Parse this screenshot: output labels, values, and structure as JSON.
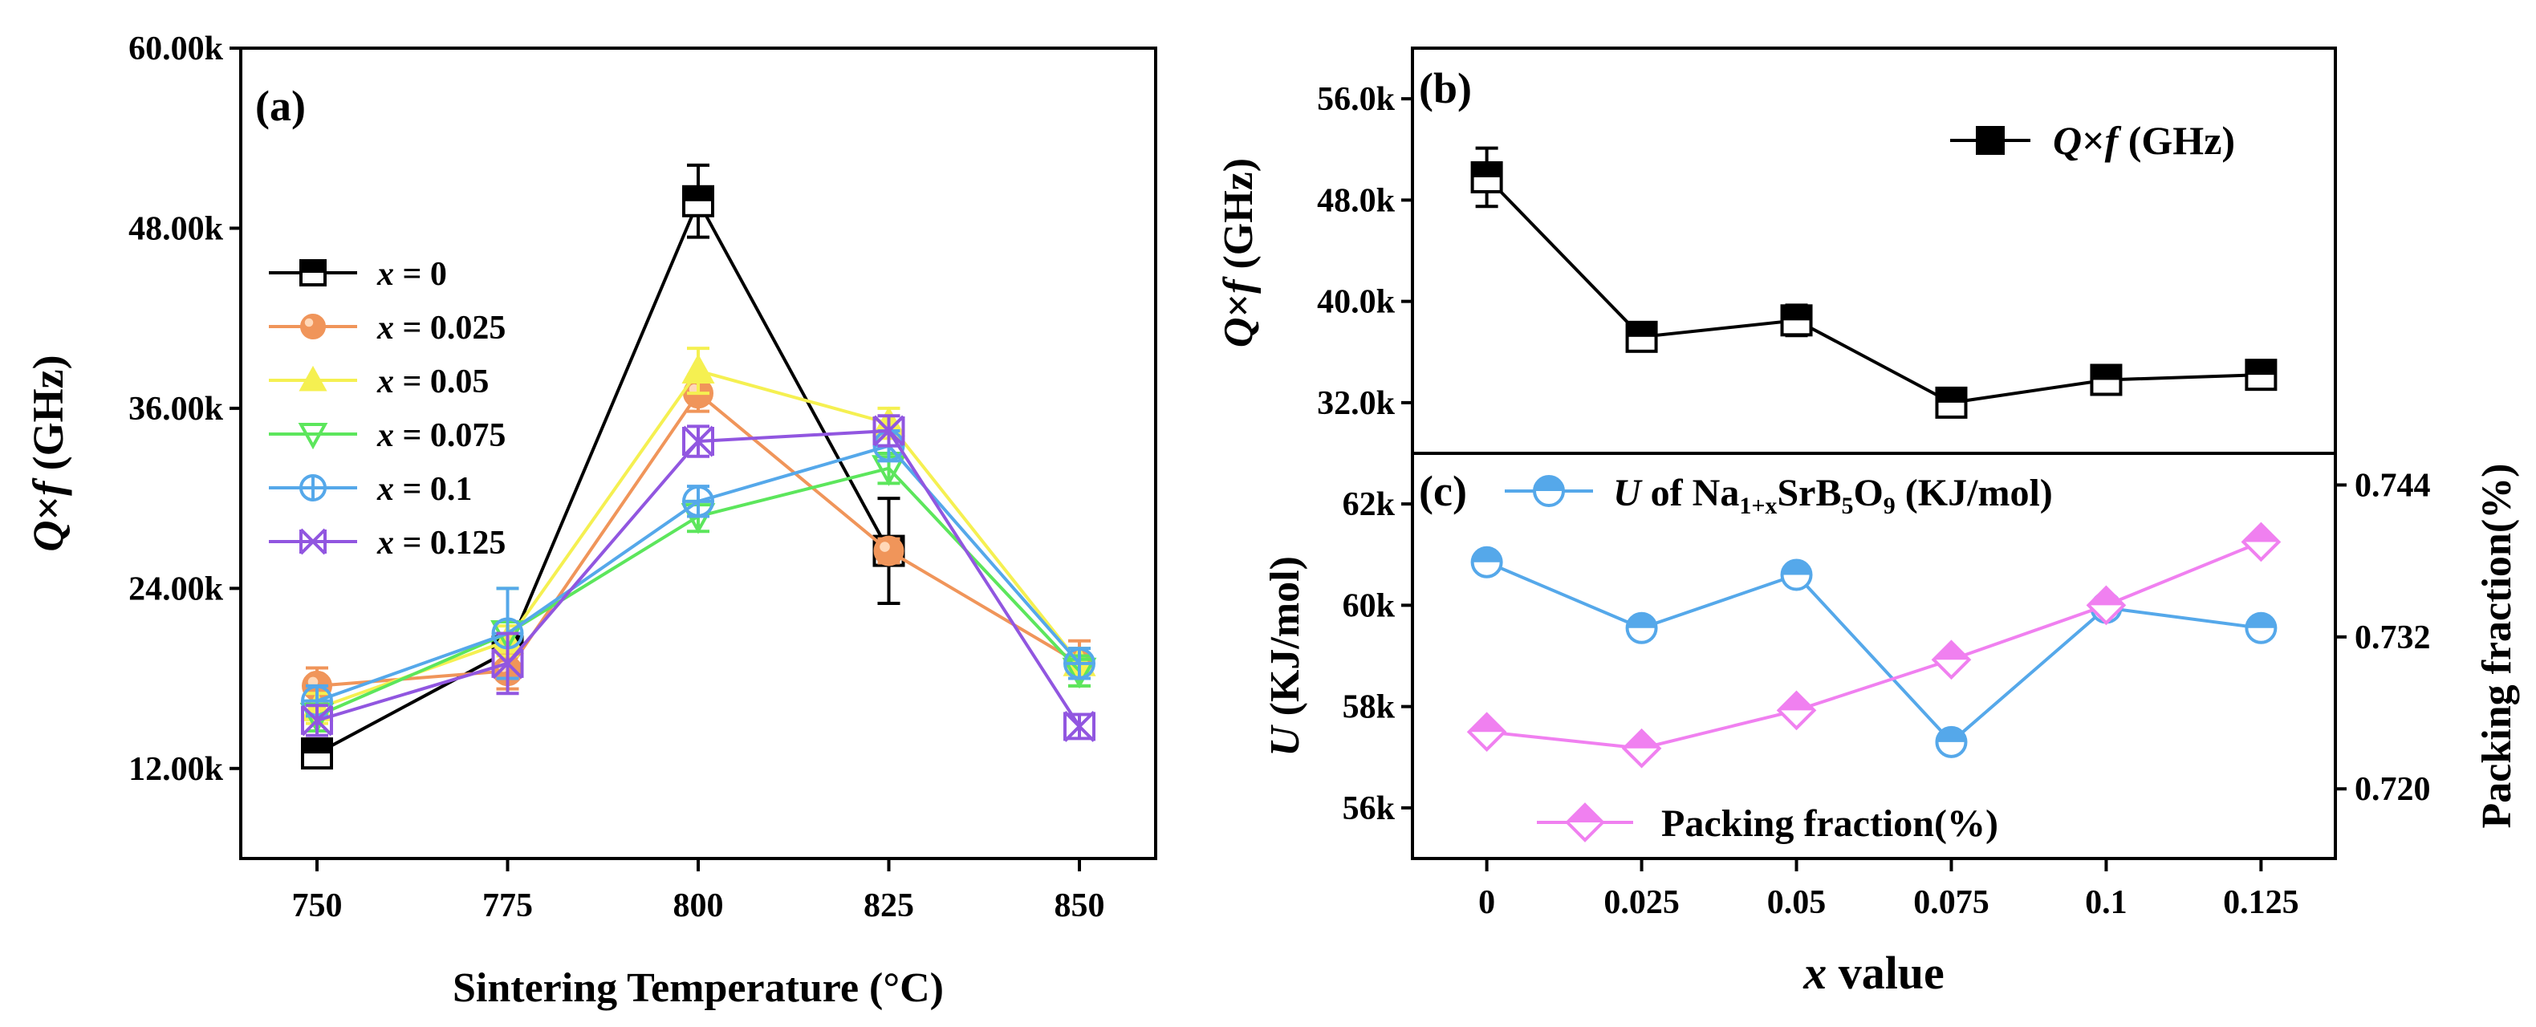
{
  "colors": {
    "x0": "#000000",
    "x0025": "#f0955a",
    "x005": "#f5f051",
    "x0075": "#5ce65c",
    "x01": "#55a8ea",
    "x0125": "#9156e0",
    "u": "#55a8ea",
    "pf": "#f080f0"
  },
  "chart_data": [
    {
      "id": "a",
      "type": "line",
      "panel_label": "(a)",
      "xlabel": "Sintering Temperature (°C)",
      "ylabel_q": "Q",
      "ylabel_times": "×",
      "ylabel_f": "f",
      "ylabel_unit": " (GHz)",
      "x": [
        750,
        775,
        800,
        825,
        850
      ],
      "x_ticks": [
        "750",
        "775",
        "800",
        "825",
        "850"
      ],
      "xlim": [
        740,
        860
      ],
      "ylim": [
        6000,
        60000
      ],
      "y_ticks": [
        {
          "value": 12000,
          "label": "12.00k"
        },
        {
          "value": 24000,
          "label": "24.00k"
        },
        {
          "value": 36000,
          "label": "36.00k"
        },
        {
          "value": 48000,
          "label": "48.00k"
        },
        {
          "value": 60000,
          "label": "60.00k"
        }
      ],
      "legend_position": "left-middle",
      "series": [
        {
          "var": "x",
          "eq": " = 0",
          "color_key": "x0",
          "marker": "square",
          "values": [
            13000,
            19800,
            49800,
            26500,
            null
          ],
          "errors": [
            600,
            1000,
            2400,
            3500,
            null
          ]
        },
        {
          "var": "x",
          "eq": " = 0.025",
          "color_key": "x0025",
          "marker": "circle",
          "values": [
            17500,
            18500,
            37000,
            26500,
            19000
          ],
          "errors": [
            1200,
            1200,
            1200,
            800,
            1500
          ]
        },
        {
          "var": "x",
          "eq": " = 0.05",
          "color_key": "x005",
          "marker": "triangle-up",
          "values": [
            16000,
            20500,
            38500,
            35000,
            19000
          ],
          "errors": [
            1000,
            1000,
            1500,
            1000,
            1000
          ]
        },
        {
          "var": "x",
          "eq": " = 0.075",
          "color_key": "x0075",
          "marker": "triangle-down",
          "values": [
            15500,
            21000,
            28800,
            32000,
            18500
          ],
          "errors": [
            1000,
            3000,
            1000,
            1000,
            1000
          ]
        },
        {
          "var": "x",
          "eq": " = 0.1",
          "color_key": "x01",
          "marker": "circle-plus",
          "values": [
            16500,
            21000,
            29800,
            33500,
            19000
          ],
          "errors": [
            1000,
            3000,
            1000,
            1000,
            1000
          ]
        },
        {
          "var": "x",
          "eq": " = 0.125",
          "color_key": "x0125",
          "marker": "x-cross",
          "values": [
            15200,
            19000,
            33800,
            34500,
            14800
          ],
          "errors": [
            1000,
            2000,
            1000,
            1000,
            800
          ]
        }
      ]
    },
    {
      "id": "b",
      "type": "line",
      "panel_label": "(b)",
      "ylabel_q": "Q",
      "ylabel_times": "×",
      "ylabel_f": "f",
      "ylabel_unit": " (GHz)",
      "x": [
        0,
        0.025,
        0.05,
        0.075,
        0.1,
        0.125
      ],
      "xlim": [
        -0.012,
        0.137
      ],
      "ylim": [
        28000,
        60000
      ],
      "y_ticks": [
        {
          "value": 32000,
          "label": "32.0k"
        },
        {
          "value": 40000,
          "label": "40.0k"
        },
        {
          "value": 48000,
          "label": "48.0k"
        },
        {
          "value": 56000,
          "label": "56.0k"
        }
      ],
      "legend_position": "top-right",
      "series": [
        {
          "legend_q": "Q",
          "legend_times": "×",
          "legend_f": "f",
          "legend_unit": " (GHz)",
          "color_key": "x0",
          "marker": "square",
          "values": [
            49800,
            37200,
            38500,
            32000,
            33800,
            34200
          ],
          "errors": [
            2300,
            500,
            1200,
            600,
            1000,
            1000
          ]
        }
      ]
    },
    {
      "id": "c",
      "type": "line",
      "panel_label": "(c)",
      "xlabel_var": "x",
      "xlabel_rest": " value",
      "ylabel_left_var": "U",
      "ylabel_left_unit": " (KJ/mol)",
      "ylabel_right": "Packing fraction(%)",
      "x": [
        0,
        0.025,
        0.05,
        0.075,
        0.1,
        0.125
      ],
      "x_ticks": [
        "0",
        "0.025",
        "0.05",
        "0.075",
        "0.1",
        "0.125"
      ],
      "xlim": [
        -0.012,
        0.137
      ],
      "ylim_left": [
        55000,
        63000
      ],
      "y_ticks_left": [
        {
          "value": 56000,
          "label": "56k"
        },
        {
          "value": 58000,
          "label": "58k"
        },
        {
          "value": 60000,
          "label": "60k"
        },
        {
          "value": 62000,
          "label": "62k"
        }
      ],
      "ylim_right": [
        0.7145,
        0.7465
      ],
      "y_ticks_right": [
        {
          "value": 0.72,
          "label": "0.720"
        },
        {
          "value": 0.732,
          "label": "0.732"
        },
        {
          "value": 0.744,
          "label": "0.744"
        }
      ],
      "series": [
        {
          "axis": "left",
          "color_key": "u",
          "marker": "circle-half",
          "legend_var": "U",
          "legend_of": " of Na",
          "legend_sub1": "1+x",
          "legend_mid": "SrB",
          "legend_sub2": "5",
          "legend_o": "O",
          "legend_sub3": "9",
          "legend_unit": " (KJ/mol)",
          "legend_position": "top",
          "values": [
            60850,
            59550,
            60600,
            57300,
            59950,
            59550
          ]
        },
        {
          "axis": "right",
          "color_key": "pf",
          "marker": "diamond",
          "name": "Packing fraction(%)",
          "legend_position": "bottom",
          "values": [
            0.7245,
            0.7232,
            0.7262,
            0.7302,
            0.7345,
            0.7395
          ]
        }
      ]
    }
  ]
}
